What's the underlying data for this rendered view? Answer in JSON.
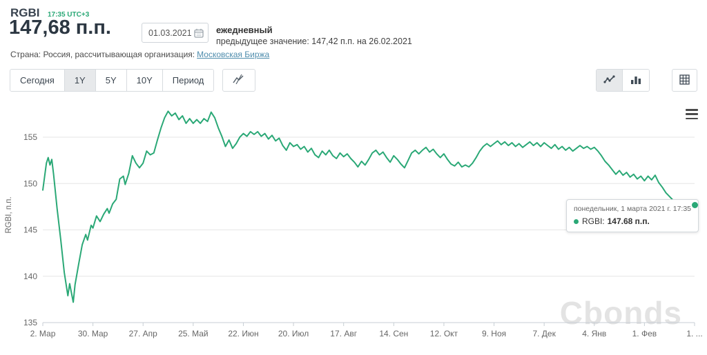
{
  "header": {
    "symbol": "RGBI",
    "time": "17:35 UTC+3",
    "value": "147,68 п.п.",
    "date_value": "01.03.2021",
    "frequency": "ежедневный",
    "previous_value_line": "предыдущее значение: 147,42 п.п. на 26.02.2021",
    "country_prefix": "Страна: Россия, рассчитывающая организация:",
    "organization_link": "Московская Биржа"
  },
  "toolbar": {
    "range_tabs": [
      {
        "label": "Сегодня",
        "active": false
      },
      {
        "label": "1Y",
        "active": true
      },
      {
        "label": "5Y",
        "active": false
      },
      {
        "label": "10Y",
        "active": false
      },
      {
        "label": "Период",
        "active": false
      }
    ],
    "indicator_button_icon": "strikethrough-line-chart-icon",
    "view_buttons": [
      {
        "icon": "line-chart-icon",
        "active": true
      },
      {
        "icon": "bar-chart-icon",
        "active": false
      }
    ],
    "table_button_icon": "table-grid-icon",
    "menu_icon": "hamburger-menu-icon"
  },
  "tooltip": {
    "datetime": "понедельник, 1 марта 2021 г. 17:35",
    "series_label": "RGBI:",
    "value": "147.68 п.п.",
    "marker_color": "#2aa876"
  },
  "watermark": "Cbonds",
  "colors": {
    "line": "#2aa876",
    "accent_green": "#2aa876",
    "link": "#4f8dad",
    "active_tab_bg": "#e7e9eb",
    "gridline": "#e6e6e6",
    "axis_text": "#666666"
  },
  "chart_data": {
    "type": "line",
    "title": "RGBI",
    "xlabel": "",
    "ylabel": "RGBI, п.п.",
    "ylim": [
      135,
      158.2
    ],
    "y_ticks": [
      135,
      140,
      145,
      150,
      155
    ],
    "x_range_days": [
      0,
      364
    ],
    "x_tick_days": [
      0,
      28,
      56,
      84,
      112,
      140,
      168,
      196,
      224,
      252,
      280,
      308,
      336,
      364
    ],
    "x_tick_labels": [
      "2. Мар",
      "30. Мар",
      "27. Апр",
      "25. Май",
      "22. Июн",
      "20. Июл",
      "17. Авг",
      "14. Сен",
      "12. Окт",
      "9. Ноя",
      "7. Дек",
      "4. Янв",
      "1. Фев",
      "1. ..."
    ],
    "grid": true,
    "legend": false,
    "last_point": {
      "date": "01.03.2021",
      "value": 147.68
    },
    "series": [
      {
        "name": "RGBI",
        "color": "#2aa876",
        "points": [
          [
            0,
            149.3
          ],
          [
            2,
            152.2
          ],
          [
            3,
            152.8
          ],
          [
            4,
            152.0
          ],
          [
            5,
            152.6
          ],
          [
            6,
            151.0
          ],
          [
            8,
            147.3
          ],
          [
            10,
            144.0
          ],
          [
            12,
            140.4
          ],
          [
            14,
            137.9
          ],
          [
            15,
            139.2
          ],
          [
            16,
            138.2
          ],
          [
            17,
            137.2
          ],
          [
            18,
            139.1
          ],
          [
            20,
            141.3
          ],
          [
            22,
            143.4
          ],
          [
            24,
            144.5
          ],
          [
            25,
            143.9
          ],
          [
            27,
            145.5
          ],
          [
            28,
            145.2
          ],
          [
            30,
            146.5
          ],
          [
            32,
            145.9
          ],
          [
            34,
            146.7
          ],
          [
            36,
            147.3
          ],
          [
            37,
            146.8
          ],
          [
            39,
            147.8
          ],
          [
            41,
            148.3
          ],
          [
            43,
            150.5
          ],
          [
            45,
            150.8
          ],
          [
            46,
            149.9
          ],
          [
            48,
            151.1
          ],
          [
            50,
            153.0
          ],
          [
            52,
            152.2
          ],
          [
            54,
            151.7
          ],
          [
            56,
            152.2
          ],
          [
            58,
            153.5
          ],
          [
            60,
            153.1
          ],
          [
            62,
            153.3
          ],
          [
            64,
            154.7
          ],
          [
            66,
            156.0
          ],
          [
            68,
            157.1
          ],
          [
            70,
            157.8
          ],
          [
            72,
            157.3
          ],
          [
            74,
            157.6
          ],
          [
            76,
            156.9
          ],
          [
            78,
            157.3
          ],
          [
            80,
            156.5
          ],
          [
            82,
            157.0
          ],
          [
            84,
            156.5
          ],
          [
            86,
            156.9
          ],
          [
            88,
            156.5
          ],
          [
            90,
            157.0
          ],
          [
            92,
            156.7
          ],
          [
            94,
            157.7
          ],
          [
            96,
            157.1
          ],
          [
            98,
            156.0
          ],
          [
            100,
            155.1
          ],
          [
            102,
            154.0
          ],
          [
            104,
            154.7
          ],
          [
            106,
            153.8
          ],
          [
            108,
            154.3
          ],
          [
            110,
            155.0
          ],
          [
            112,
            155.4
          ],
          [
            114,
            155.1
          ],
          [
            116,
            155.6
          ],
          [
            118,
            155.3
          ],
          [
            120,
            155.6
          ],
          [
            122,
            155.1
          ],
          [
            124,
            155.4
          ],
          [
            126,
            154.8
          ],
          [
            128,
            155.2
          ],
          [
            130,
            154.6
          ],
          [
            132,
            154.9
          ],
          [
            134,
            154.1
          ],
          [
            136,
            153.6
          ],
          [
            138,
            154.4
          ],
          [
            140,
            154.0
          ],
          [
            142,
            154.2
          ],
          [
            144,
            153.7
          ],
          [
            146,
            154.0
          ],
          [
            148,
            153.4
          ],
          [
            150,
            153.8
          ],
          [
            152,
            153.1
          ],
          [
            154,
            152.8
          ],
          [
            156,
            153.5
          ],
          [
            158,
            153.1
          ],
          [
            160,
            153.6
          ],
          [
            162,
            153.0
          ],
          [
            164,
            152.7
          ],
          [
            166,
            153.3
          ],
          [
            168,
            152.9
          ],
          [
            170,
            153.2
          ],
          [
            172,
            152.7
          ],
          [
            174,
            152.3
          ],
          [
            176,
            151.8
          ],
          [
            178,
            152.4
          ],
          [
            180,
            152.0
          ],
          [
            182,
            152.6
          ],
          [
            184,
            153.3
          ],
          [
            186,
            153.6
          ],
          [
            188,
            153.1
          ],
          [
            190,
            153.4
          ],
          [
            192,
            152.8
          ],
          [
            194,
            152.3
          ],
          [
            196,
            153.0
          ],
          [
            198,
            152.6
          ],
          [
            200,
            152.1
          ],
          [
            202,
            151.7
          ],
          [
            204,
            152.5
          ],
          [
            206,
            153.3
          ],
          [
            208,
            153.6
          ],
          [
            210,
            153.2
          ],
          [
            212,
            153.6
          ],
          [
            214,
            153.9
          ],
          [
            216,
            153.4
          ],
          [
            218,
            153.7
          ],
          [
            220,
            153.2
          ],
          [
            222,
            152.8
          ],
          [
            224,
            153.2
          ],
          [
            226,
            152.6
          ],
          [
            228,
            152.1
          ],
          [
            230,
            151.9
          ],
          [
            232,
            152.3
          ],
          [
            234,
            151.8
          ],
          [
            236,
            152.0
          ],
          [
            238,
            151.8
          ],
          [
            240,
            152.2
          ],
          [
            242,
            152.8
          ],
          [
            244,
            153.5
          ],
          [
            246,
            154.0
          ],
          [
            248,
            154.3
          ],
          [
            250,
            154.0
          ],
          [
            252,
            154.3
          ],
          [
            254,
            154.6
          ],
          [
            256,
            154.2
          ],
          [
            258,
            154.5
          ],
          [
            260,
            154.1
          ],
          [
            262,
            154.4
          ],
          [
            264,
            154.0
          ],
          [
            266,
            154.3
          ],
          [
            268,
            153.9
          ],
          [
            270,
            154.2
          ],
          [
            272,
            154.5
          ],
          [
            274,
            154.1
          ],
          [
            276,
            154.4
          ],
          [
            278,
            154.0
          ],
          [
            280,
            154.4
          ],
          [
            282,
            154.1
          ],
          [
            284,
            153.8
          ],
          [
            286,
            154.2
          ],
          [
            288,
            153.7
          ],
          [
            290,
            154.0
          ],
          [
            292,
            153.6
          ],
          [
            294,
            153.9
          ],
          [
            296,
            153.5
          ],
          [
            298,
            153.8
          ],
          [
            300,
            154.1
          ],
          [
            302,
            153.8
          ],
          [
            304,
            154.0
          ],
          [
            306,
            153.7
          ],
          [
            308,
            153.9
          ],
          [
            310,
            153.5
          ],
          [
            312,
            153.0
          ],
          [
            314,
            152.4
          ],
          [
            316,
            152.0
          ],
          [
            318,
            151.5
          ],
          [
            320,
            151.0
          ],
          [
            322,
            151.4
          ],
          [
            324,
            150.9
          ],
          [
            326,
            151.2
          ],
          [
            328,
            150.7
          ],
          [
            330,
            151.0
          ],
          [
            332,
            150.5
          ],
          [
            334,
            150.8
          ],
          [
            336,
            150.3
          ],
          [
            338,
            150.8
          ],
          [
            340,
            150.4
          ],
          [
            342,
            150.9
          ],
          [
            344,
            150.1
          ],
          [
            346,
            149.6
          ],
          [
            348,
            149.0
          ],
          [
            350,
            148.6
          ],
          [
            352,
            148.2
          ],
          [
            354,
            147.9
          ],
          [
            356,
            147.6
          ],
          [
            358,
            147.9
          ],
          [
            360,
            147.5
          ],
          [
            362,
            147.4
          ],
          [
            364,
            147.68
          ]
        ]
      }
    ]
  }
}
